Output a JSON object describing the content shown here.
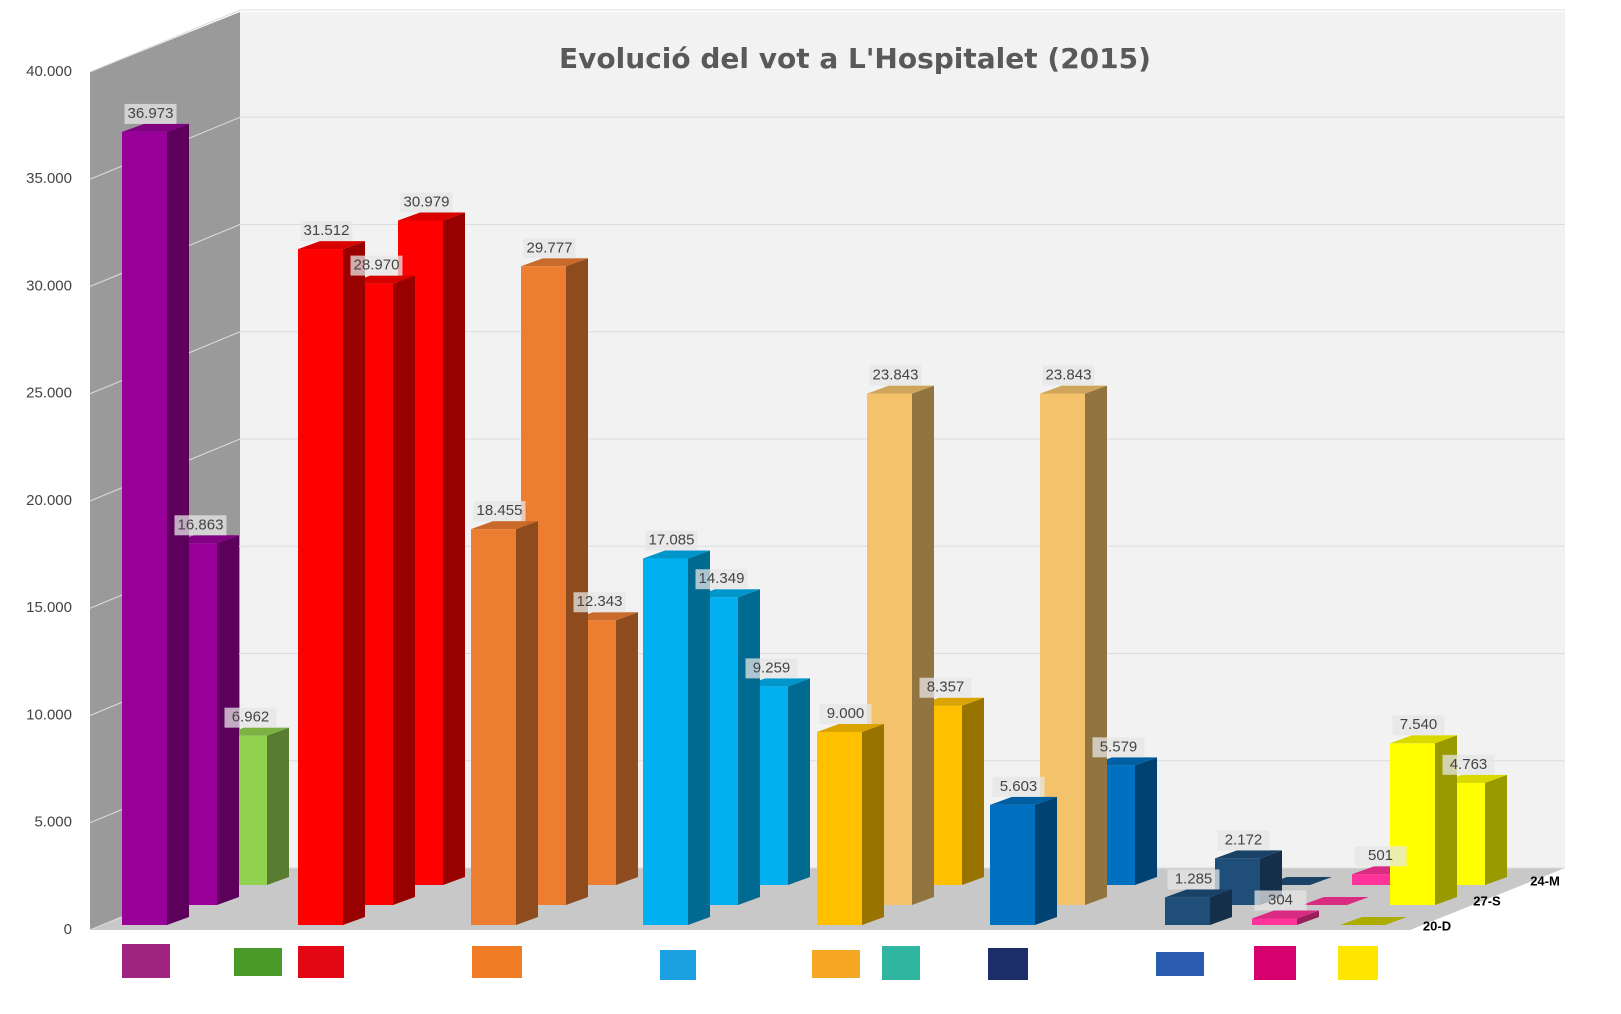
{
  "chart_data": {
    "type": "bar3d",
    "title": "Evolució del vot a L'Hospitalet (2015)",
    "categories": [
      null,
      null,
      null,
      null,
      null,
      null,
      null,
      null,
      null
    ],
    "series": [
      {
        "name": "20-D",
        "values": [
          36973,
          31512,
          18455,
          17085,
          9000,
          5603,
          1285,
          304,
          0
        ],
        "value_labels": [
          "36.973",
          "31.512",
          "18.455",
          "17.085",
          "9.000",
          "5.603",
          "1.285",
          "304",
          null
        ],
        "colors": [
          "#990099",
          "#ff0000",
          "#ed7d31",
          "#00b0f0",
          "#ffc000",
          "#0070c0",
          "#1f4e79",
          "#ff3399",
          "#cccc00"
        ]
      },
      {
        "name": "27-S",
        "values": [
          16863,
          28970,
          29777,
          14349,
          23843,
          23843,
          2172,
          0,
          7540
        ],
        "value_labels": [
          "16.863",
          "28.970",
          "29.777",
          "14.349",
          "23.843",
          "23.843",
          "2.172",
          null,
          "7.540"
        ],
        "colors": [
          "#990099",
          "#ff0000",
          "#ed7d31",
          "#00b0f0",
          "#f4c26b",
          "#f4c26b",
          "#1f4e79",
          "#ff3399",
          "#ffff00"
        ]
      },
      {
        "name": "24-M",
        "values": [
          6962,
          30979,
          12343,
          9259,
          8357,
          5579,
          0,
          501,
          4763
        ],
        "value_labels": [
          "6.962",
          "30.979",
          "12.343",
          "9.259",
          "8.357",
          "5.579",
          null,
          "501",
          "4.763"
        ],
        "colors": [
          "#92d050",
          "#ff0000",
          "#ed7d31",
          "#00b0f0",
          "#ffc000",
          "#0070c0",
          "#1f4e79",
          "#ff3399",
          "#ffff00"
        ]
      }
    ],
    "ylim": [
      0,
      40000
    ],
    "yticks": [
      0,
      {
        "value": 5000,
        "label": "5.000"
      },
      {
        "value": 10000,
        "label": "10.000"
      },
      {
        "value": 15000,
        "label": "15.000"
      },
      {
        "value": 20000,
        "label": "20.000"
      },
      {
        "value": 25000,
        "label": "25.000"
      },
      {
        "value": 30000,
        "label": "30.000"
      },
      {
        "value": 35000,
        "label": "35.000"
      },
      {
        "value": 40000,
        "label": "40.000"
      }
    ],
    "grid": true
  }
}
